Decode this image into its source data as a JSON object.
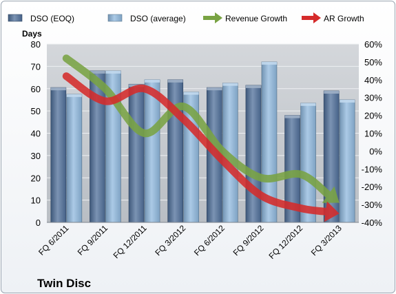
{
  "chart_data": {
    "type": "bar",
    "company": "Twin Disc",
    "ylabel": "Days",
    "categories": [
      "FQ 6/2011",
      "FQ 9/2011",
      "FQ 12/2011",
      "FQ 3/2012",
      "FQ 6/2012",
      "FQ 9/2012",
      "FQ 12/2012",
      "FQ 3/2013"
    ],
    "ylim": [
      0,
      80
    ],
    "y_ticks": [
      0,
      10,
      20,
      30,
      40,
      50,
      60,
      70,
      80
    ],
    "y2lim": [
      -40,
      60
    ],
    "y2_ticks": [
      -40,
      -30,
      -20,
      -10,
      0,
      10,
      20,
      30,
      40,
      50,
      60
    ],
    "y2_format": "percent",
    "grid": true,
    "legend_position": "top",
    "series": [
      {
        "name": "DSO (EOQ)",
        "kind": "bar",
        "axis": "left",
        "color": "#4f6f9a",
        "values": [
          60.5,
          68,
          62,
          64,
          60.5,
          61.5,
          48,
          59
        ]
      },
      {
        "name": "DSO (average)",
        "kind": "bar",
        "axis": "left",
        "color": "#8fb8de",
        "values": [
          57.5,
          68,
          64,
          58.5,
          62.5,
          72,
          53.5,
          55
        ]
      },
      {
        "name": "Revenue Growth",
        "kind": "arrow-line",
        "axis": "right",
        "color": "#79a343",
        "values": [
          52,
          35,
          10,
          25,
          0,
          -15,
          -13,
          -29
        ]
      },
      {
        "name": "AR Growth",
        "kind": "arrow-line",
        "axis": "right",
        "color": "#d52b2b",
        "values": [
          42,
          28,
          35,
          18,
          -5,
          -25,
          -32,
          -35
        ]
      }
    ]
  }
}
